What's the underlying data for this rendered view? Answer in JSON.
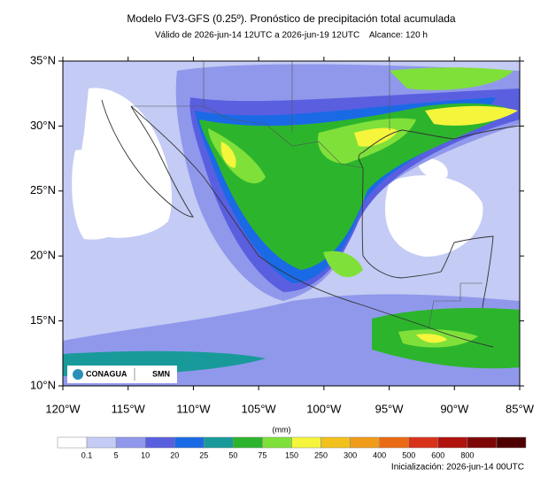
{
  "header": {
    "title": "Modelo FV3-GFS (0.25º). Pronóstico de precipitación total acumulada",
    "subtitle": "Válido de 2026-jun-14 12UTC a 2026-jun-19 12UTC    Alcance: 120 h"
  },
  "map": {
    "lat_labels": [
      "35°N",
      "30°N",
      "25°N",
      "20°N",
      "15°N",
      "10°N"
    ],
    "lon_labels": [
      "120°W",
      "115°W",
      "110°W",
      "105°W",
      "100°W",
      "95°W",
      "90°W",
      "85°W"
    ],
    "logos": [
      "CONAGUA",
      "SMN"
    ]
  },
  "colorbar": {
    "unit": "(mm)",
    "labels": [
      "0.1",
      "5",
      "10",
      "20",
      "25",
      "50",
      "75",
      "150",
      "250",
      "300",
      "400",
      "500",
      "600",
      "800"
    ],
    "colors": [
      "#ffffff",
      "#c4cbf4",
      "#9098ec",
      "#5a5fe0",
      "#1a6ae6",
      "#199a9a",
      "#2cb52c",
      "#80e03a",
      "#f5f53c",
      "#f2c11c",
      "#f19b1a",
      "#ea6a14",
      "#d8321a",
      "#b0120e",
      "#7d0606",
      "#4e0000"
    ]
  },
  "footer": {
    "init": "Inicialización: 2026-jun-14 00UTC"
  }
}
